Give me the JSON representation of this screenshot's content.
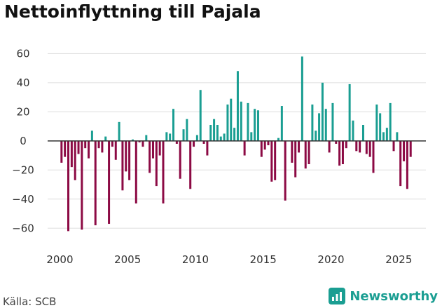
{
  "title": "Nettoinflyttning till Pajala",
  "source": "Källa: SCB",
  "brand": {
    "name": "Newsworthy",
    "icon": "bar-chart-logo-icon"
  },
  "colors": {
    "positive": "#1a9e92",
    "negative": "#8c0a44",
    "grid": "#dddddd",
    "zero_line": "#333333",
    "brand": "#1a9e92"
  },
  "chart_data": {
    "type": "bar",
    "title": "Nettoinflyttning till Pajala",
    "xlabel": "",
    "ylabel": "",
    "x_start": 2000,
    "interval": "quarter",
    "xlim": [
      1999.1,
      2027.0
    ],
    "ylim": [
      -70,
      65
    ],
    "yticks": [
      -60,
      -40,
      -20,
      0,
      20,
      40,
      60
    ],
    "ytick_labels": [
      "−60",
      "−40",
      "−20",
      "0",
      "20",
      "40",
      "60"
    ],
    "xticks": [
      2000,
      2005,
      2010,
      2015,
      2020,
      2025
    ],
    "xtick_labels": [
      "2000",
      "2005",
      "2010",
      "2015",
      "2020",
      "2025"
    ],
    "grid": true,
    "values": [
      -15,
      -11,
      -62,
      -18,
      -27,
      -9,
      -61,
      -5,
      -12,
      7,
      -58,
      -5,
      -8,
      3,
      -57,
      -4,
      -13,
      13,
      -34,
      -21,
      -27,
      1,
      -43,
      -1,
      -4,
      4,
      -22,
      -12,
      -31,
      -10,
      -43,
      6,
      5,
      22,
      -2,
      -26,
      8,
      15,
      -33,
      -4,
      4,
      35,
      -2,
      -10,
      11,
      15,
      11,
      3,
      5,
      25,
      29,
      9,
      48,
      27,
      -10,
      26,
      6,
      22,
      21,
      -11,
      -6,
      -3,
      -28,
      -27,
      2,
      24,
      -41,
      0,
      -15,
      -25,
      -8,
      58,
      -19,
      -16,
      25,
      7,
      19,
      40,
      22,
      -8,
      26,
      -2,
      -17,
      -16,
      -5,
      39,
      14,
      -7,
      -8,
      11,
      -9,
      -11,
      -22,
      25,
      19,
      6,
      9,
      26,
      -7,
      6,
      -31,
      -14,
      -33,
      -11
    ]
  }
}
